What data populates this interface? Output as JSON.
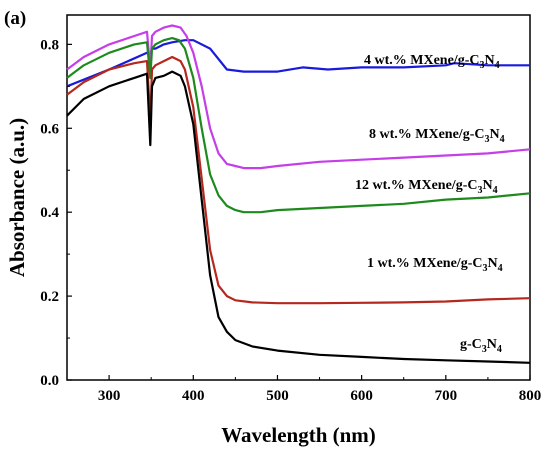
{
  "chart_data": {
    "type": "line",
    "panel_label": "(a)",
    "xlabel": "Wavelength (nm)",
    "ylabel": "Absorbance (a.u.)",
    "xlim": [
      250,
      800
    ],
    "ylim": [
      0.0,
      0.87
    ],
    "x_ticks": [
      300,
      400,
      500,
      600,
      700,
      800
    ],
    "x_tick_labels": [
      "300",
      "400",
      "500",
      "600",
      "700",
      "800"
    ],
    "y_ticks": [
      0.0,
      0.2,
      0.4,
      0.6,
      0.8
    ],
    "y_tick_labels": [
      "0.0",
      "0.2",
      "0.4",
      "0.6",
      "0.8"
    ],
    "grid": false,
    "series": [
      {
        "name": "4 wt.% MXene/g-C3N4",
        "label_main": "4 wt.% MXene/g-C",
        "label_sub1": "3",
        "label_mid": "N",
        "label_sub2": "4",
        "color": "#1a1adb",
        "x": [
          250,
          300,
          345,
          349,
          351,
          355,
          365,
          375,
          390,
          400,
          420,
          440,
          460,
          500,
          530,
          560,
          600,
          650,
          700,
          710,
          750,
          800
        ],
        "y": [
          0.7,
          0.74,
          0.78,
          0.775,
          0.79,
          0.79,
          0.8,
          0.805,
          0.81,
          0.81,
          0.79,
          0.74,
          0.735,
          0.735,
          0.745,
          0.74,
          0.745,
          0.745,
          0.75,
          0.755,
          0.75,
          0.75
        ]
      },
      {
        "name": "8 wt.% MXene/g-C3N4",
        "label_main": "8 wt.% MXene/g-C",
        "label_sub1": "3",
        "label_mid": "N",
        "label_sub2": "4",
        "color": "#c53ee8",
        "x": [
          250,
          270,
          300,
          330,
          345,
          349,
          351,
          355,
          365,
          375,
          385,
          392,
          400,
          410,
          420,
          430,
          440,
          450,
          460,
          480,
          500,
          550,
          600,
          650,
          700,
          750,
          800
        ],
        "y": [
          0.74,
          0.77,
          0.8,
          0.82,
          0.83,
          0.74,
          0.82,
          0.83,
          0.84,
          0.845,
          0.84,
          0.82,
          0.78,
          0.7,
          0.6,
          0.54,
          0.515,
          0.51,
          0.505,
          0.505,
          0.51,
          0.52,
          0.525,
          0.53,
          0.535,
          0.54,
          0.55
        ]
      },
      {
        "name": "12 wt.% MXene/g-C3N4",
        "label_main": "12 wt.% MXene/g-C",
        "label_sub1": "3",
        "label_mid": "N",
        "label_sub2": "4",
        "color": "#1e8a1e",
        "x": [
          250,
          270,
          300,
          330,
          345,
          349,
          351,
          355,
          365,
          375,
          383,
          390,
          400,
          410,
          420,
          430,
          440,
          450,
          460,
          480,
          500,
          550,
          600,
          650,
          700,
          750,
          800
        ],
        "y": [
          0.72,
          0.75,
          0.78,
          0.8,
          0.805,
          0.72,
          0.79,
          0.8,
          0.81,
          0.815,
          0.81,
          0.79,
          0.72,
          0.6,
          0.49,
          0.44,
          0.415,
          0.405,
          0.4,
          0.4,
          0.405,
          0.41,
          0.415,
          0.42,
          0.43,
          0.435,
          0.445
        ]
      },
      {
        "name": "1 wt.% MXene/g-C3N4",
        "label_main": "1 wt.% MXene/g-C",
        "label_sub1": "3",
        "label_mid": "N",
        "label_sub2": "4",
        "color": "#b5281e",
        "x": [
          250,
          270,
          300,
          330,
          345,
          349,
          351,
          355,
          365,
          375,
          385,
          390,
          400,
          410,
          420,
          430,
          440,
          450,
          470,
          500,
          550,
          600,
          650,
          700,
          750,
          800
        ],
        "y": [
          0.68,
          0.71,
          0.74,
          0.755,
          0.76,
          0.62,
          0.74,
          0.75,
          0.76,
          0.77,
          0.76,
          0.74,
          0.65,
          0.48,
          0.31,
          0.225,
          0.2,
          0.19,
          0.185,
          0.183,
          0.183,
          0.184,
          0.185,
          0.187,
          0.192,
          0.195
        ]
      },
      {
        "name": "g-C3N4",
        "label_main": "g-C",
        "label_sub1": "3",
        "label_mid": "N",
        "label_sub2": "4",
        "color": "#000000",
        "x": [
          250,
          270,
          300,
          330,
          345,
          349,
          351,
          355,
          365,
          375,
          385,
          390,
          400,
          410,
          420,
          430,
          440,
          450,
          470,
          500,
          550,
          600,
          650,
          700,
          750,
          800
        ],
        "y": [
          0.63,
          0.67,
          0.7,
          0.72,
          0.73,
          0.56,
          0.7,
          0.72,
          0.725,
          0.735,
          0.725,
          0.7,
          0.61,
          0.43,
          0.25,
          0.15,
          0.115,
          0.095,
          0.08,
          0.07,
          0.06,
          0.055,
          0.05,
          0.047,
          0.044,
          0.041
        ]
      }
    ]
  }
}
